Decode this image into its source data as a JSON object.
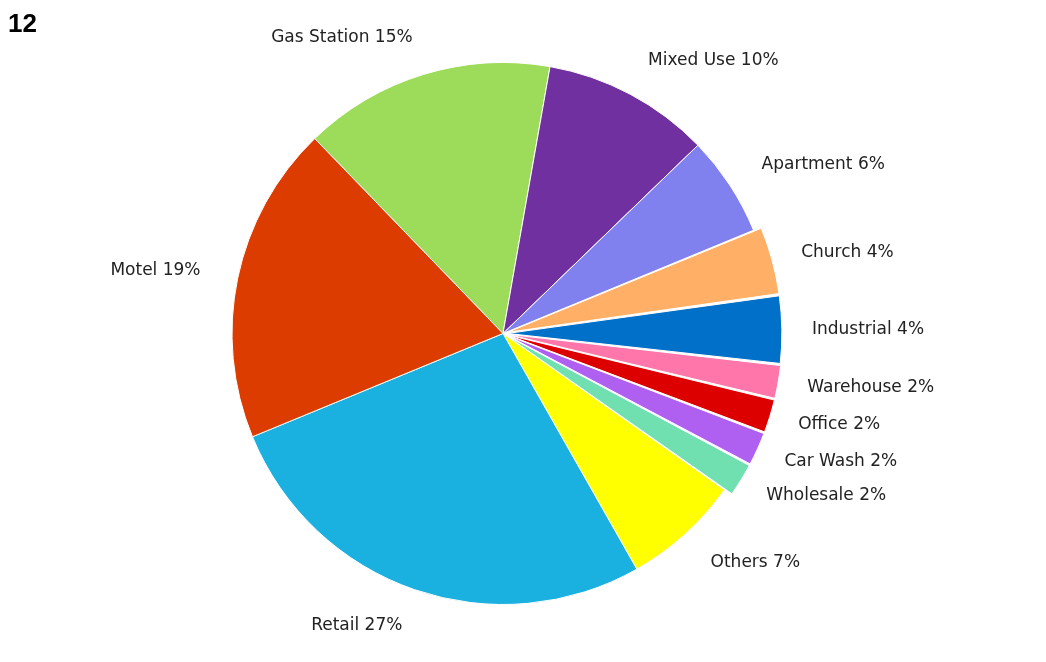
{
  "chart_data": {
    "type": "pie",
    "title": "12",
    "categories": [
      "Gas Station",
      "Mixed Use",
      "Apartment",
      "Church",
      "Industrial",
      "Warehouse",
      "Office",
      "Car Wash",
      "Wholesale",
      "Others",
      "Retail",
      "Motel"
    ],
    "values": [
      15,
      10,
      6,
      4,
      4,
      2,
      2,
      2,
      2,
      7,
      27,
      19
    ],
    "colors": [
      "#9ddc5a",
      "#7030a0",
      "#8080ee",
      "#ffb066",
      "#0070c8",
      "#ff77aa",
      "#dd0000",
      "#b060f0",
      "#70e0b0",
      "#ffff00",
      "#1ab0e0",
      "#dd3c00"
    ],
    "value_labels": [
      "15%",
      "10%",
      "6%",
      "4%",
      "4%",
      "2%",
      "2%",
      "2%",
      "2%",
      "7%",
      "27%",
      "19%"
    ],
    "legend": false
  }
}
